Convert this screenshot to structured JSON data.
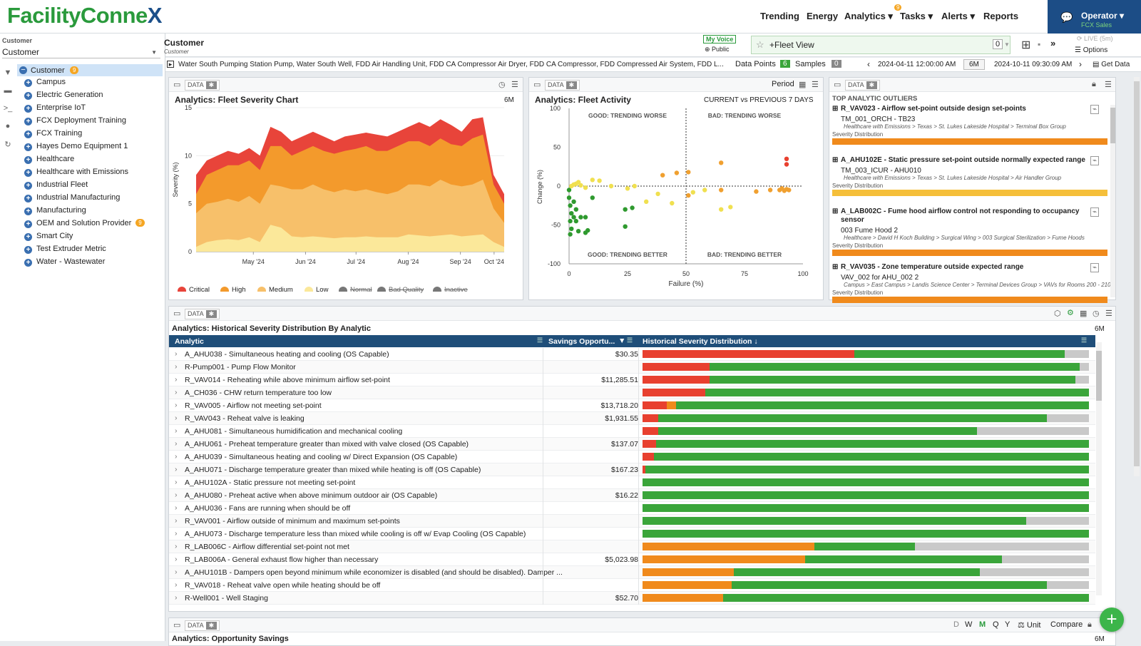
{
  "header": {
    "logo_part1": "FacilityConne",
    "logo_part2": "X",
    "nav": [
      {
        "label": "Trending"
      },
      {
        "label": "Energy"
      },
      {
        "label": "Analytics ▾"
      },
      {
        "label": "Tasks ▾"
      },
      {
        "label": "Alerts ▾"
      },
      {
        "label": "Reports"
      }
    ],
    "tasks_badge": "9",
    "user": "Operator ▾",
    "user_sub": "FCX Sales"
  },
  "sidebar": {
    "label": "Customer",
    "selected": "Customer",
    "root": "Customer",
    "root_badge": "9",
    "items": [
      {
        "label": "Campus"
      },
      {
        "label": "Electric Generation"
      },
      {
        "label": "Enterprise IoT"
      },
      {
        "label": "FCX Deployment Training"
      },
      {
        "label": "FCX Training"
      },
      {
        "label": "Hayes Demo Equipment 1"
      },
      {
        "label": "Healthcare"
      },
      {
        "label": "Healthcare with Emissions"
      },
      {
        "label": "Industrial Fleet"
      },
      {
        "label": "Industrial Manufacturing"
      },
      {
        "label": "Manufacturing"
      },
      {
        "label": "OEM and Solution Provider",
        "badge": "9"
      },
      {
        "label": "Smart City"
      },
      {
        "label": "Test Extruder Metric"
      },
      {
        "label": "Water - Wastewater"
      }
    ]
  },
  "toolbar": {
    "title": "Customer",
    "subtitle": "Customer",
    "voice": "My Voice",
    "public": "Public",
    "fleet_view": "+Fleet View",
    "fleet_count": "0",
    "live": "LIVE (5m)",
    "options": "Options",
    "filter_text": "Water South Pumping Station Pump, Water South Well, FDD Air Handling Unit, FDD CA Compressor Air Dryer, FDD CA Compressor, FDD Compressed Air System, FDD L...",
    "data_points_label": "Data Points",
    "data_points": "6",
    "samples_label": "Samples",
    "samples": "0",
    "start": "2024-04-11 12:00:00 AM",
    "range": "6M",
    "end": "2024-10-11 09:30:09 AM",
    "get_data": "Get Data"
  },
  "data_tag": "DATA",
  "chart_data": [
    {
      "type": "area",
      "title": "Analytics: Fleet Severity Chart",
      "period": "6M",
      "ylabel": "Severity (%)",
      "ylim": [
        0,
        15
      ],
      "yticks": [
        "15",
        "10",
        "5",
        "0"
      ],
      "xticks": [
        "May '24",
        "Jun '24",
        "Jul '24",
        "Aug '24",
        "Sep '24",
        "Oct '24"
      ],
      "x_start": "2024-04-11",
      "x_end": "2024-10-11",
      "series": [
        {
          "name": "Critical",
          "color": "#e8443a",
          "values": [
            8,
            9.5,
            10,
            10.5,
            10.2,
            10.8,
            10,
            13,
            12.5,
            11.5,
            12,
            12.5,
            12,
            11.5,
            12,
            12.2,
            12.4,
            12.2,
            12,
            12.5,
            13,
            13.5,
            13,
            13.8,
            13.2,
            12.5,
            13.8,
            14,
            8,
            6
          ]
        },
        {
          "name": "High",
          "color": "#f39a2c",
          "values": [
            6,
            8,
            8.5,
            9,
            9,
            9.5,
            8.5,
            11,
            11,
            10,
            10.5,
            11,
            10.5,
            10.2,
            10.5,
            10.7,
            11,
            10.5,
            10.5,
            11,
            11.5,
            11.5,
            11,
            11.8,
            11.2,
            11,
            11.8,
            12.2,
            7,
            5
          ]
        },
        {
          "name": "Medium",
          "color": "#f7c06a",
          "values": [
            4,
            5,
            5.2,
            5.5,
            5.2,
            5.8,
            5,
            7,
            6.8,
            6.5,
            6.5,
            7,
            6.5,
            6.2,
            6.5,
            6.3,
            6.5,
            6.2,
            6,
            6.3,
            7,
            7,
            6.8,
            7.5,
            7,
            6.8,
            7,
            7.5,
            4.5,
            3
          ]
        },
        {
          "name": "Low",
          "color": "#fbe89a",
          "values": [
            0.5,
            1,
            1.2,
            1.3,
            1.2,
            1.5,
            1,
            2.8,
            2.5,
            1.6,
            1.5,
            1.6,
            1.5,
            1.4,
            1.5,
            1.5,
            1.6,
            1.5,
            1.5,
            1.5,
            1.8,
            1.7,
            1.6,
            1.7,
            1.8,
            1.6,
            1.7,
            1.8,
            1,
            0.5
          ]
        }
      ],
      "legend": [
        {
          "label": "Critical",
          "color": "#e8443a"
        },
        {
          "label": "High",
          "color": "#f39a2c"
        },
        {
          "label": "Medium",
          "color": "#f7c06a"
        },
        {
          "label": "Low",
          "color": "#fbe89a"
        },
        {
          "label": "Normal",
          "color": "#777",
          "struck": true
        },
        {
          "label": "Bad Quality",
          "color": "#777",
          "struck": true
        },
        {
          "label": "Inactive",
          "color": "#777",
          "struck": true
        }
      ]
    },
    {
      "type": "scatter",
      "title": "Analytics: Fleet Activity",
      "subtitle": "CURRENT vs PREVIOUS 7 DAYS",
      "period_label": "Period",
      "xlabel": "Failure (%)",
      "ylabel": "Change (%)",
      "xlim": [
        0,
        100
      ],
      "ylim": [
        -100,
        100
      ],
      "xticks": [
        "0",
        "25",
        "50",
        "75",
        "100"
      ],
      "yticks": [
        "100",
        "50",
        "0",
        "-50",
        "-100"
      ],
      "quadrants": [
        "GOOD: TRENDING WORSE",
        "BAD: TRENDING WORSE",
        "GOOD: TRENDING BETTER",
        "BAD: TRENDING BETTER"
      ],
      "points": [
        {
          "x": 0,
          "y": -5,
          "c": "g"
        },
        {
          "x": 0,
          "y": -15,
          "c": "g"
        },
        {
          "x": 0.5,
          "y": -25,
          "c": "g"
        },
        {
          "x": 1,
          "y": -35,
          "c": "g"
        },
        {
          "x": 0.5,
          "y": -45,
          "c": "g"
        },
        {
          "x": 1,
          "y": -55,
          "c": "g"
        },
        {
          "x": 0.5,
          "y": -62,
          "c": "g"
        },
        {
          "x": 2,
          "y": -40,
          "c": "g"
        },
        {
          "x": 3,
          "y": -45,
          "c": "g"
        },
        {
          "x": 4,
          "y": -58,
          "c": "g"
        },
        {
          "x": 5,
          "y": -40,
          "c": "g"
        },
        {
          "x": 7,
          "y": -60,
          "c": "g"
        },
        {
          "x": 7,
          "y": -40,
          "c": "g"
        },
        {
          "x": 8,
          "y": -57,
          "c": "g"
        },
        {
          "x": 10,
          "y": -15,
          "c": "g"
        },
        {
          "x": 24,
          "y": -30,
          "c": "g"
        },
        {
          "x": 27,
          "y": -28,
          "c": "g"
        },
        {
          "x": 24,
          "y": -52,
          "c": "g"
        },
        {
          "x": 2,
          "y": -20,
          "c": "g"
        },
        {
          "x": 3,
          "y": -30,
          "c": "g"
        },
        {
          "x": 1,
          "y": 0,
          "c": "y"
        },
        {
          "x": 2,
          "y": 2,
          "c": "y"
        },
        {
          "x": 3,
          "y": 3,
          "c": "y"
        },
        {
          "x": 4,
          "y": 5,
          "c": "y"
        },
        {
          "x": 5,
          "y": 1,
          "c": "y"
        },
        {
          "x": 7,
          "y": -2,
          "c": "y"
        },
        {
          "x": 10,
          "y": 8,
          "c": "y"
        },
        {
          "x": 13,
          "y": 7,
          "c": "y"
        },
        {
          "x": 18,
          "y": 0,
          "c": "y"
        },
        {
          "x": 25,
          "y": -3,
          "c": "y"
        },
        {
          "x": 28,
          "y": 0,
          "c": "y"
        },
        {
          "x": 33,
          "y": -20,
          "c": "y"
        },
        {
          "x": 38,
          "y": -10,
          "c": "y"
        },
        {
          "x": 44,
          "y": -22,
          "c": "y"
        },
        {
          "x": 53,
          "y": -8,
          "c": "y"
        },
        {
          "x": 58,
          "y": -5,
          "c": "y"
        },
        {
          "x": 65,
          "y": -30,
          "c": "y"
        },
        {
          "x": 69,
          "y": -27,
          "c": "y"
        },
        {
          "x": 40,
          "y": 14,
          "c": "o"
        },
        {
          "x": 46,
          "y": 17,
          "c": "o"
        },
        {
          "x": 51,
          "y": 18,
          "c": "o"
        },
        {
          "x": 51,
          "y": -12,
          "c": "o"
        },
        {
          "x": 65,
          "y": -5,
          "c": "o"
        },
        {
          "x": 65,
          "y": 30,
          "c": "o"
        },
        {
          "x": 80,
          "y": -7,
          "c": "o"
        },
        {
          "x": 86,
          "y": -5,
          "c": "o"
        },
        {
          "x": 90,
          "y": -5,
          "c": "o"
        },
        {
          "x": 91,
          "y": -3,
          "c": "o"
        },
        {
          "x": 92,
          "y": -6,
          "c": "o"
        },
        {
          "x": 93,
          "y": -4,
          "c": "o"
        },
        {
          "x": 94,
          "y": -5,
          "c": "o"
        },
        {
          "x": 93,
          "y": 35,
          "c": "r"
        },
        {
          "x": 93,
          "y": 28,
          "c": "r"
        }
      ]
    }
  ],
  "outliers": {
    "title": "TOP ANALYTIC OUTLIERS",
    "dist_label": "Severity Distribution",
    "items": [
      {
        "name": "R_VAV023 - Airflow set-point outside design set-points",
        "equip": "TM_001_ORCH - TB23",
        "path": "Healthcare with Emissions > Texas > St. Lukes Lakeside Hospital > Terminal Box Group",
        "color": "#f08a1c"
      },
      {
        "name": "A_AHU102E - Static pressure set-point outside normally expected range",
        "equip": "TM_003_ICUR - AHU010",
        "path": "Healthcare with Emissions > Texas > St. Lukes Lakeside Hospital > Air Handler Group",
        "color": "#f5bf3a"
      },
      {
        "name": "A_LAB002C - Fume hood airflow control not responding to occupancy sensor",
        "equip": "003 Fume Hood 2",
        "path": "Healthcare > David H Koch Building > Surgical Wing > 003 Surgical Sterilization > Fume Hoods",
        "color": "#f08a1c"
      },
      {
        "name": "R_VAV035 - Zone temperature outside expected range",
        "equip": "VAV_002 for AHU_002 2",
        "path": "Campus > East Campus > Landis Science Center > Terminal Devices Group > VAVs for Rooms 200 - 210",
        "color": "#f08a1c"
      }
    ]
  },
  "severity_table": {
    "title": "Analytics: Historical Severity Distribution By Analytic",
    "period": "6M",
    "col_analytic": "Analytic",
    "col_savings": "Savings Opportu...",
    "col_dist": "Historical Severity Distribution ↓",
    "rows": [
      {
        "name": "A_AHU038 - Simultaneous heating and cooling (OS Capable)",
        "savings": "$30.35",
        "dist": {
          "red": 47.5,
          "orange": 0,
          "green": 47,
          "gray": 5.5
        }
      },
      {
        "name": "R-Pump001 - Pump Flow Monitor",
        "savings": "",
        "dist": {
          "red": 15,
          "orange": 0,
          "green": 83,
          "gray": 2
        }
      },
      {
        "name": "R_VAV014 - Reheating while above minimum airflow set-point",
        "savings": "$11,285.51",
        "dist": {
          "red": 15,
          "orange": 0,
          "green": 82,
          "gray": 3
        }
      },
      {
        "name": "A_CH036 - CHW return temperature too low",
        "savings": "",
        "dist": {
          "red": 14,
          "orange": 0,
          "green": 86,
          "gray": 0
        }
      },
      {
        "name": "R_VAV005 - Airflow not meeting set-point",
        "savings": "$13,718.20",
        "dist": {
          "red": 5.5,
          "orange": 2,
          "green": 92.5,
          "gray": 0
        }
      },
      {
        "name": "R_VAV043 - Reheat valve is leaking",
        "savings": "$1,931.55",
        "dist": {
          "red": 3.5,
          "orange": 0,
          "green": 87,
          "gray": 9.5
        }
      },
      {
        "name": "A_AHU081 - Simultaneous humidification and mechanical cooling",
        "savings": "",
        "dist": {
          "red": 3.5,
          "orange": 0,
          "green": 71.5,
          "gray": 25
        }
      },
      {
        "name": "A_AHU061 - Preheat temperature greater than mixed with valve closed (OS Capable)",
        "savings": "$137.07",
        "dist": {
          "red": 3,
          "orange": 0,
          "green": 97,
          "gray": 0
        }
      },
      {
        "name": "A_AHU039 - Simultaneous heating and cooling w/ Direct Expansion (OS Capable)",
        "savings": "",
        "dist": {
          "red": 2.5,
          "orange": 0,
          "green": 97.5,
          "gray": 0
        }
      },
      {
        "name": "A_AHU071 - Discharge temperature greater than mixed while heating is off (OS Capable)",
        "savings": "$167.23",
        "dist": {
          "red": 0.7,
          "orange": 0,
          "green": 99.3,
          "gray": 0
        }
      },
      {
        "name": "A_AHU102A - Static pressure not meeting set-point",
        "savings": "",
        "dist": {
          "red": 0,
          "orange": 0,
          "green": 100,
          "gray": 0
        }
      },
      {
        "name": "A_AHU080 - Preheat active when above minimum outdoor air (OS Capable)",
        "savings": "$16.22",
        "dist": {
          "red": 0,
          "orange": 0,
          "green": 100,
          "gray": 0
        }
      },
      {
        "name": "A_AHU036 - Fans are running when should be off",
        "savings": "",
        "dist": {
          "red": 0,
          "orange": 0,
          "green": 100,
          "gray": 0
        }
      },
      {
        "name": "R_VAV001 - Airflow outside of minimum and maximum set-points",
        "savings": "",
        "dist": {
          "red": 0,
          "orange": 0,
          "green": 86,
          "gray": 14
        }
      },
      {
        "name": "A_AHU073 - Discharge temperature less than mixed while cooling is off w/ Evap Cooling (OS Capable)",
        "savings": "",
        "dist": {
          "red": 0,
          "orange": 0,
          "green": 100,
          "gray": 0
        }
      },
      {
        "name": "R_LAB006C - Airflow differential set-point not met",
        "savings": "",
        "dist": {
          "red": 0,
          "orange": 38.5,
          "green": 22.5,
          "gray": 39
        }
      },
      {
        "name": "R_LAB006A - General exhaust flow higher than necessary",
        "savings": "$5,023.98",
        "dist": {
          "red": 0,
          "orange": 36.5,
          "green": 44,
          "gray": 19.5
        }
      },
      {
        "name": "A_AHU101B - Dampers open beyond minimum while economizer is disabled (and should be disabled). Damper ...",
        "savings": "",
        "dist": {
          "red": 0,
          "orange": 20.5,
          "green": 55,
          "gray": 24.5
        }
      },
      {
        "name": "R_VAV018 - Reheat valve open while heating should be off",
        "savings": "",
        "dist": {
          "red": 0,
          "orange": 20,
          "green": 70.5,
          "gray": 9.5
        }
      },
      {
        "name": "R-Well001 - Well Staging",
        "savings": "$52.70",
        "dist": {
          "red": 0,
          "orange": 18,
          "green": 82,
          "gray": 0
        }
      }
    ]
  },
  "bottom_panel": {
    "title": "Analytics: Opportunity Savings",
    "period": "6M",
    "ranges": [
      "D",
      "W",
      "M",
      "Q",
      "Y"
    ],
    "unit": "Unit",
    "compare": "Compare"
  },
  "colors": {
    "red": "#e8402f",
    "orange": "#f08a1c",
    "green": "#3aa53a",
    "gray": "#c9c9c9",
    "header_blue": "#1f4e79",
    "brand_green": "#2a9a3c"
  }
}
